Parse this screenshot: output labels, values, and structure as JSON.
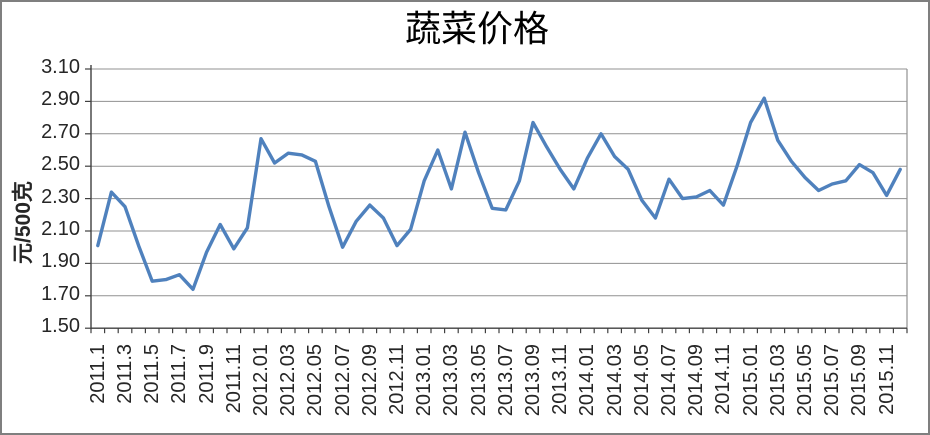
{
  "chart_data": {
    "type": "line",
    "title": "蔬菜价格",
    "xlabel": "",
    "ylabel": "元/500克",
    "ylim": [
      1.5,
      3.1
    ],
    "ytick_step": 0.2,
    "ytick_labels": [
      "3.10",
      "2.90",
      "2.70",
      "2.50",
      "2.30",
      "2.10",
      "1.90",
      "1.70",
      "1.50"
    ],
    "xtick_every": 2,
    "grid": true,
    "legend": "none",
    "categories": [
      "2011.1",
      "2011.2",
      "2011.3",
      "2011.4",
      "2011.5",
      "2011.6",
      "2011.7",
      "2011.8",
      "2011.9",
      "2011.10",
      "2011.11",
      "2011.12",
      "2012.01",
      "2012.02",
      "2012.03",
      "2012.04",
      "2012.05",
      "2012.06",
      "2012.07",
      "2012.08",
      "2012.09",
      "2012.10",
      "2012.11",
      "2012.12",
      "2013.01",
      "2013.02",
      "2013.03",
      "2013.04",
      "2013.05",
      "2013.06",
      "2013.07",
      "2013.08",
      "2013.09",
      "2013.10",
      "2013.11",
      "2013.12",
      "2014.01",
      "2014.02",
      "2014.03",
      "2014.04",
      "2014.05",
      "2014.06",
      "2014.07",
      "2014.08",
      "2014.09",
      "2014.10",
      "2014.11",
      "2014.12",
      "2015.01",
      "2015.02",
      "2015.03",
      "2015.04",
      "2015.05",
      "2015.06",
      "2015.07",
      "2015.08",
      "2015.09",
      "2015.10",
      "2015.11",
      "2015.12"
    ],
    "series": [
      {
        "name": "蔬菜价格",
        "color": "#4F81BD",
        "values": [
          2.01,
          2.34,
          2.25,
          2.01,
          1.79,
          1.8,
          1.83,
          1.74,
          1.97,
          2.14,
          1.99,
          2.12,
          2.67,
          2.52,
          2.58,
          2.57,
          2.53,
          2.25,
          2.0,
          2.16,
          2.26,
          2.18,
          2.01,
          2.11,
          2.41,
          2.6,
          2.36,
          2.71,
          2.46,
          2.24,
          2.23,
          2.41,
          2.77,
          2.62,
          2.48,
          2.36,
          2.55,
          2.7,
          2.56,
          2.48,
          2.29,
          2.18,
          2.42,
          2.3,
          2.31,
          2.35,
          2.26,
          2.5,
          2.77,
          2.92,
          2.66,
          2.53,
          2.43,
          2.35,
          2.39,
          2.41,
          2.51,
          2.46,
          2.32,
          2.48
        ]
      }
    ]
  },
  "colors": {
    "line": "#4F81BD",
    "gridline": "#919191",
    "axis": "#404040",
    "text": "#262626",
    "background": "#FFFFFF",
    "border": "#7F7F7F"
  }
}
